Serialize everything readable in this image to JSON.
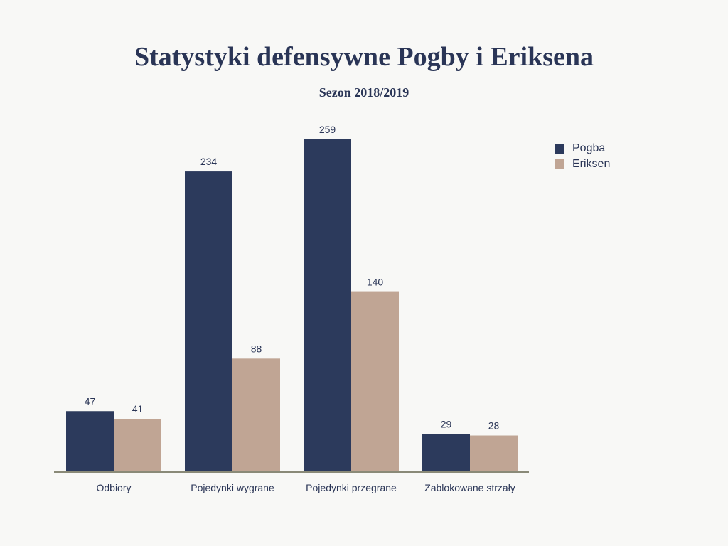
{
  "title": "Statystyki defensywne Pogby i Eriksena",
  "subtitle": "Sezon 2018/2019",
  "colors": {
    "pogba": "#2c3a5c",
    "eriksen": "#c0a594",
    "axis": "#8a8a78",
    "text": "#2a3556"
  },
  "chart_data": {
    "type": "bar",
    "title": "Statystyki defensywne Pogby i Eriksena",
    "subtitle": "Sezon 2018/2019",
    "categories": [
      "Odbiory",
      "Pojedynki wygrane",
      "Pojedynki przegrane",
      "Zablokowane strzały"
    ],
    "series": [
      {
        "name": "Pogba",
        "values": [
          47,
          234,
          259,
          29
        ]
      },
      {
        "name": "Eriksen",
        "values": [
          41,
          88,
          140,
          28
        ]
      }
    ],
    "xlabel": "",
    "ylabel": "",
    "ylim": [
      0,
      259
    ],
    "grid": false,
    "legend": "top-right"
  }
}
